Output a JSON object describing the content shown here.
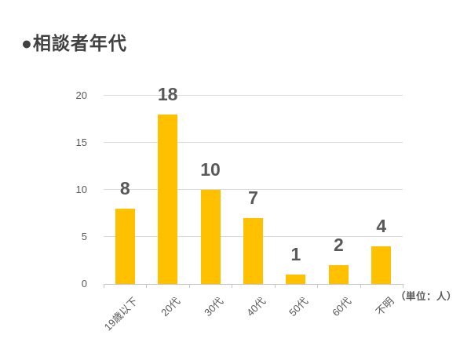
{
  "page": {
    "title": "●相談者年代",
    "unit_note": "（単位：人）"
  },
  "chart_data": {
    "type": "bar",
    "title": "相談者年代",
    "categories": [
      "19歳以下",
      "20代",
      "30代",
      "40代",
      "50代",
      "60代",
      "不明"
    ],
    "values": [
      8,
      18,
      10,
      7,
      1,
      2,
      4
    ],
    "xlabel": "",
    "ylabel": "",
    "ylim": [
      0,
      20
    ],
    "yticks": [
      0,
      5,
      10,
      15,
      20
    ],
    "grid": true,
    "legend": false,
    "unit_note": "（単位：人）",
    "colors": {
      "bar": "#FFC000",
      "data_label": "#595959",
      "axis_label": "#595959",
      "gridline": "#D9D9D9",
      "axis_line": "#C6C6C6",
      "title": "#404040"
    }
  }
}
